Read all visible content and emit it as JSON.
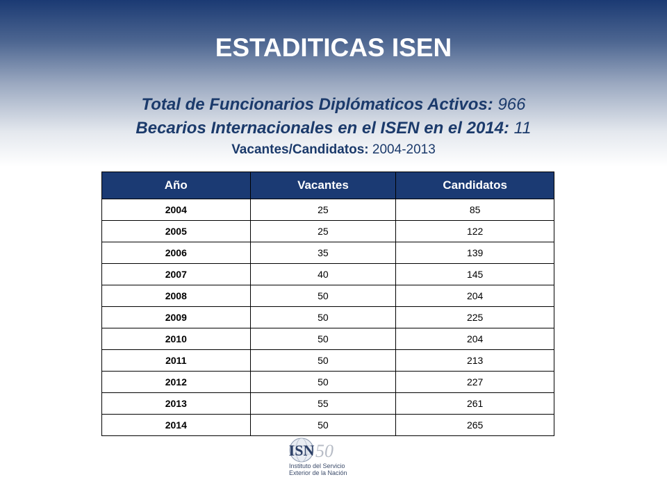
{
  "slide": {
    "title": "ESTADITICAS ISEN",
    "info": [
      {
        "label": "Total de Funcionarios Diplómaticos Activos:",
        "value": "966"
      },
      {
        "label": "Becarios Internacionales en el ISEN en el 2014:",
        "value": "11"
      },
      {
        "label": "Vacantes/Candidatos:",
        "value": "2004-2013"
      }
    ]
  },
  "table": {
    "headers": [
      "Año",
      "Vacantes",
      "Candidatos"
    ],
    "rows": [
      [
        "2004",
        "25",
        "85"
      ],
      [
        "2005",
        "25",
        "122"
      ],
      [
        "2006",
        "35",
        "139"
      ],
      [
        "2007",
        "40",
        "145"
      ],
      [
        "2008",
        "50",
        "204"
      ],
      [
        "2009",
        "50",
        "225"
      ],
      [
        "2010",
        "50",
        "204"
      ],
      [
        "2011",
        "50",
        "213"
      ],
      [
        "2012",
        "50",
        "227"
      ],
      [
        "2013",
        "55",
        "261"
      ],
      [
        "2014",
        "50",
        "265"
      ]
    ]
  },
  "logo": {
    "mark": "ISN",
    "anniversary": "50",
    "line1": "Instituto del Servicio",
    "line2": "Exterior de la Nación"
  },
  "colors": {
    "header_bg": "#1b3a73",
    "text_navy": "#1b3a6b"
  }
}
